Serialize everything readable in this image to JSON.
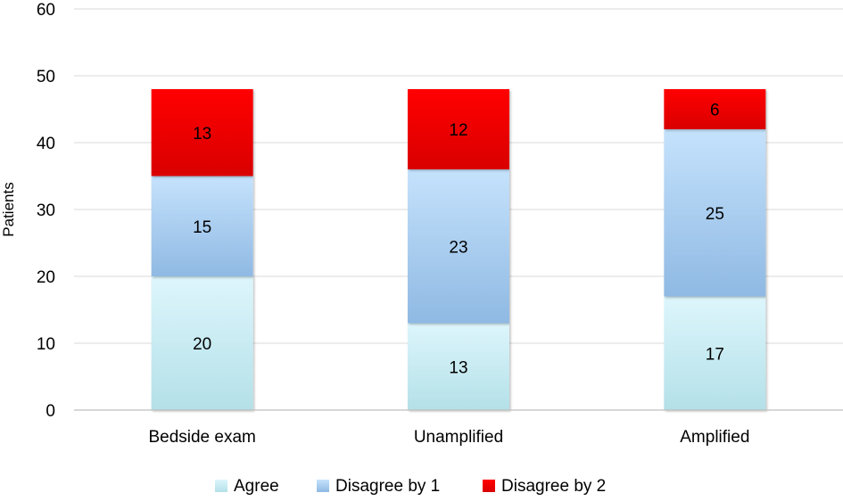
{
  "chart_data": {
    "type": "bar",
    "stacked": true,
    "categories": [
      "Bedside exam",
      "Unamplified",
      "Amplified"
    ],
    "series": [
      {
        "name": "Agree",
        "values": [
          20,
          13,
          17
        ],
        "color_top": "#DDF6FC",
        "color_bottom": "#B4E0E8"
      },
      {
        "name": "Disagree by 1",
        "values": [
          15,
          23,
          25
        ],
        "color_top": "#C5E2FC",
        "color_bottom": "#8FB9E3"
      },
      {
        "name": "Disagree by 2",
        "values": [
          13,
          12,
          6
        ],
        "color_top": "#FF0000",
        "color_bottom": "#D90000"
      }
    ],
    "title": "",
    "xlabel": "",
    "ylabel": "Patients",
    "ylim": [
      0,
      60
    ],
    "yticks": [
      "0",
      "10",
      "20",
      "30",
      "40",
      "50",
      "60"
    ],
    "grid": true,
    "legend_position": "bottom"
  },
  "colors": {
    "gridline": "#D9D9D9",
    "axis": "#BFBFBF"
  }
}
